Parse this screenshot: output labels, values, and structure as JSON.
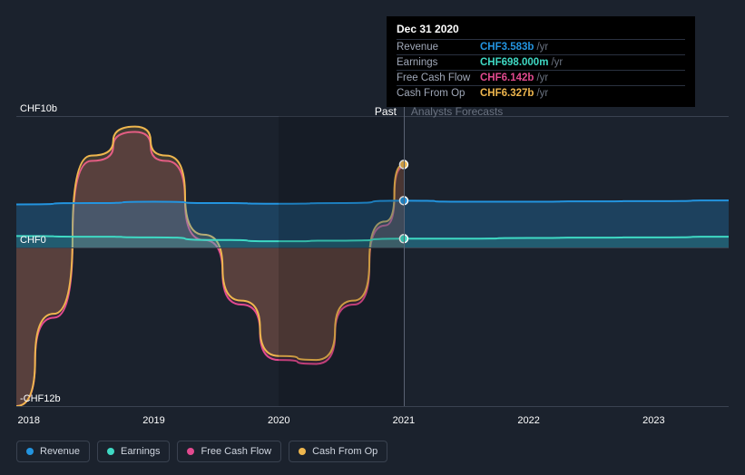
{
  "tooltip": {
    "date": "Dec 31 2020",
    "rows": [
      {
        "label": "Revenue",
        "value": "CHF3.583b",
        "unit": "/yr",
        "color": "#2394df"
      },
      {
        "label": "Earnings",
        "value": "CHF698.000m",
        "unit": "/yr",
        "color": "#3fd9c4"
      },
      {
        "label": "Free Cash Flow",
        "value": "CHF6.142b",
        "unit": "/yr",
        "color": "#e24a8f"
      },
      {
        "label": "Cash From Op",
        "value": "CHF6.327b",
        "unit": "/yr",
        "color": "#eeb64e"
      }
    ]
  },
  "periods": {
    "past": "Past",
    "forecast": "Analysts Forecasts"
  },
  "legend": [
    {
      "label": "Revenue",
      "color": "#2394df"
    },
    {
      "label": "Earnings",
      "color": "#3fd9c4"
    },
    {
      "label": "Free Cash Flow",
      "color": "#e24a8f"
    },
    {
      "label": "Cash From Op",
      "color": "#eeb64e"
    }
  ],
  "chart": {
    "background_color": "#1b222d",
    "grid_color": "#3a4250",
    "y_axis": {
      "ticks": [
        {
          "label": "CHF10b",
          "value": 10
        },
        {
          "label": "CHF0",
          "value": 0
        },
        {
          "label": "-CHF12b",
          "value": -12
        }
      ],
      "min": -12,
      "max": 10
    },
    "x_axis": {
      "ticks": [
        {
          "label": "2018",
          "value": 2018
        },
        {
          "label": "2019",
          "value": 2019
        },
        {
          "label": "2020",
          "value": 2020
        },
        {
          "label": "2021",
          "value": 2021
        },
        {
          "label": "2022",
          "value": 2022
        },
        {
          "label": "2023",
          "value": 2023
        }
      ],
      "min": 2017.9,
      "max": 2023.6,
      "cursor_x": 2021.0
    },
    "series": {
      "cash_from_op": {
        "color": "#eeb64e",
        "fill": "rgba(238,182,78,0.18)",
        "line_width": 2,
        "type": "area",
        "points": [
          [
            2017.9,
            -12
          ],
          [
            2018.2,
            -5
          ],
          [
            2018.5,
            7
          ],
          [
            2018.85,
            9.2
          ],
          [
            2019.1,
            7
          ],
          [
            2019.4,
            1
          ],
          [
            2019.7,
            -4
          ],
          [
            2020.0,
            -8.2
          ],
          [
            2020.3,
            -8.5
          ],
          [
            2020.6,
            -4
          ],
          [
            2020.85,
            2
          ],
          [
            2021.0,
            6.327
          ]
        ]
      },
      "free_cash_flow": {
        "color": "#e24a8f",
        "fill": "rgba(226,74,143,0.14)",
        "line_width": 2,
        "type": "area",
        "points": [
          [
            2017.9,
            -12
          ],
          [
            2018.2,
            -5.3
          ],
          [
            2018.5,
            6.6
          ],
          [
            2018.85,
            8.8
          ],
          [
            2019.1,
            6.6
          ],
          [
            2019.4,
            0.6
          ],
          [
            2019.7,
            -4.3
          ],
          [
            2020.0,
            -8.5
          ],
          [
            2020.3,
            -8.8
          ],
          [
            2020.6,
            -4.3
          ],
          [
            2020.85,
            1.7
          ],
          [
            2021.0,
            6.142
          ]
        ]
      },
      "revenue": {
        "color": "#2394df",
        "fill": "rgba(35,148,223,0.28)",
        "line_width": 2,
        "type": "area",
        "points": [
          [
            2017.9,
            3.3
          ],
          [
            2018.5,
            3.4
          ],
          [
            2019.0,
            3.5
          ],
          [
            2019.5,
            3.4
          ],
          [
            2020.0,
            3.35
          ],
          [
            2020.5,
            3.4
          ],
          [
            2021.0,
            3.583
          ],
          [
            2021.5,
            3.5
          ],
          [
            2022.0,
            3.5
          ],
          [
            2022.5,
            3.53
          ],
          [
            2023.0,
            3.55
          ],
          [
            2023.6,
            3.6
          ]
        ]
      },
      "earnings": {
        "color": "#3fd9c4",
        "fill": "rgba(63,217,196,0.18)",
        "line_width": 2,
        "type": "area",
        "points": [
          [
            2017.9,
            0.9
          ],
          [
            2018.5,
            0.85
          ],
          [
            2019.0,
            0.8
          ],
          [
            2019.5,
            0.6
          ],
          [
            2020.0,
            0.5
          ],
          [
            2020.5,
            0.55
          ],
          [
            2021.0,
            0.698
          ],
          [
            2021.5,
            0.7
          ],
          [
            2022.0,
            0.75
          ],
          [
            2022.5,
            0.78
          ],
          [
            2023.0,
            0.8
          ],
          [
            2023.6,
            0.85
          ]
        ]
      }
    },
    "markers": [
      {
        "x": 2021.0,
        "y": 6.327,
        "color": "#eeb64e"
      },
      {
        "x": 2021.0,
        "y": 3.583,
        "color": "#2394df"
      },
      {
        "x": 2021.0,
        "y": 0.698,
        "color": "#3fd9c4"
      }
    ]
  }
}
